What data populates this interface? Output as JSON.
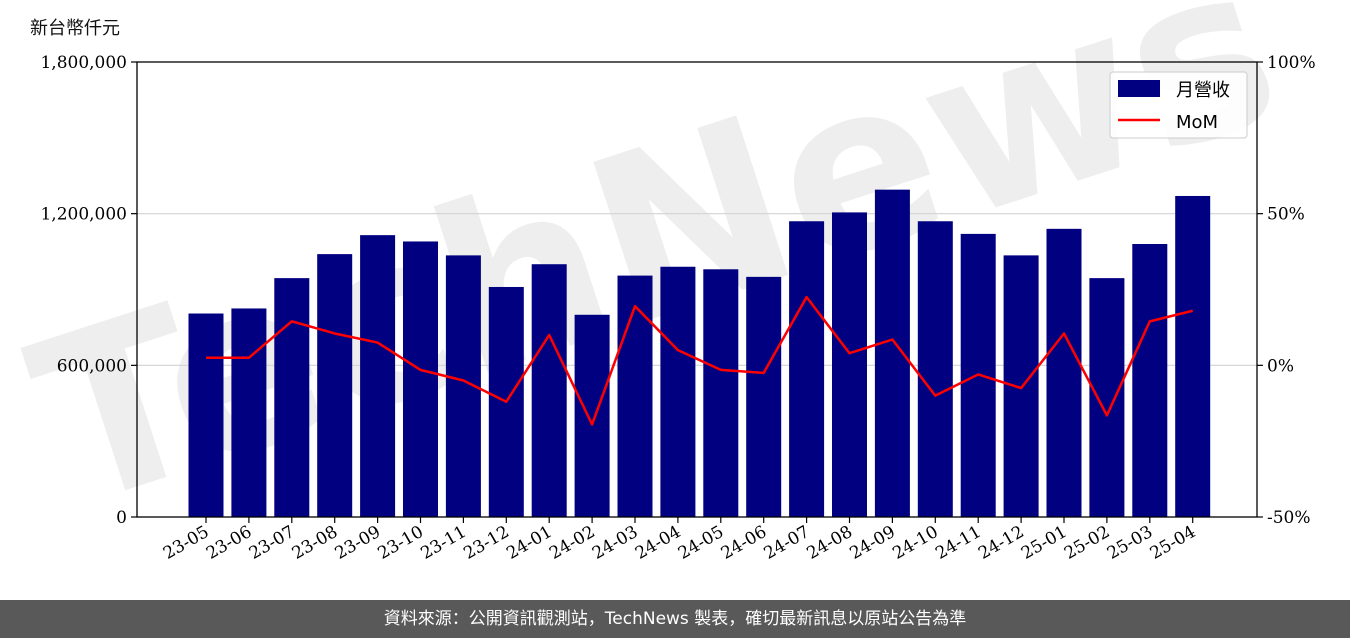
{
  "unit_label": "新台幣仟元",
  "footer_text": "資料來源：公開資訊觀測站，TechNews 製表，確切最新訊息以原站公告為準",
  "watermark_text": "TechNews",
  "colors": {
    "bar": "#000080",
    "line": "#ff0000",
    "grid": "#d3d3d3",
    "footer_bg": "#595959"
  },
  "chart_data": {
    "type": "bar",
    "categories": [
      "23-05",
      "23-06",
      "23-07",
      "23-08",
      "23-09",
      "23-10",
      "23-11",
      "23-12",
      "24-01",
      "24-02",
      "24-03",
      "24-04",
      "24-05",
      "24-06",
      "24-07",
      "24-08",
      "24-09",
      "24-10",
      "24-11",
      "24-12",
      "25-01",
      "25-02",
      "25-03",
      "25-04"
    ],
    "series": [
      {
        "name": "月營收",
        "type": "bar",
        "axis": "left",
        "values": [
          805000,
          825000,
          945000,
          1040000,
          1115000,
          1090000,
          1035000,
          910000,
          1000000,
          800000,
          955000,
          990000,
          980000,
          950000,
          1170000,
          1205000,
          1295000,
          1170000,
          1120000,
          1035000,
          1140000,
          945000,
          1080000,
          1270000
        ]
      },
      {
        "name": "MoM",
        "type": "line",
        "axis": "right",
        "values": [
          2.5,
          2.5,
          14.5,
          10.5,
          7.5,
          -1.5,
          -5,
          -12,
          10,
          -19.5,
          19.5,
          5,
          -1.5,
          -2.5,
          22.5,
          4,
          8.5,
          -10,
          -3,
          -7.5,
          10.5,
          -16.5,
          14.5,
          18
        ]
      }
    ],
    "left_axis": {
      "min": 0,
      "max": 1800000,
      "ticks": [
        "0",
        "600,000",
        "1,200,000",
        "1,800,000"
      ],
      "tick_values": [
        0,
        600000,
        1200000,
        1800000
      ]
    },
    "right_axis": {
      "min": -50,
      "max": 100,
      "ticks": [
        "-50%",
        "0%",
        "50%",
        "100%"
      ],
      "tick_values": [
        -50,
        0,
        50,
        100
      ]
    },
    "grid": "horizontal",
    "legend_position": "top-right"
  }
}
